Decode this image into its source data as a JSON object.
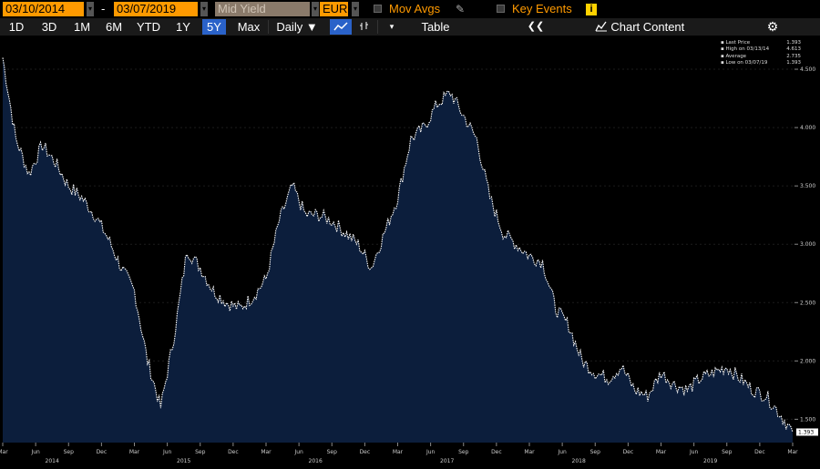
{
  "toolbar": {
    "start_date": "03/10/2014",
    "date_sep": "-",
    "end_date": "03/07/2019",
    "field": "Mid Yield",
    "currency": "EUR",
    "mov_avgs": "Mov Avgs",
    "key_events": "Key Events",
    "info": "i",
    "dropdown": "▾"
  },
  "ranges": [
    "1D",
    "3D",
    "1M",
    "6M",
    "YTD",
    "1Y",
    "5Y",
    "Max"
  ],
  "selected_range": "5Y",
  "frequency": "Daily ▼",
  "chart_type_icon": "line-chart-icon",
  "bar_icon": "bar-chart-icon",
  "table_label": "Table",
  "collapse_label": "❮❮",
  "chart_content_label": "Chart Content",
  "colors": {
    "accent": "#ff9a00",
    "selected": "#2a62c9",
    "area": "#0c1e3c",
    "line": "#ffffff"
  },
  "legend": [
    {
      "label": "Last Price",
      "value": "1.393"
    },
    {
      "label": "High on 03/13/14",
      "value": "4.613"
    },
    {
      "label": "Average",
      "value": "2.735"
    },
    {
      "label": "Low on 03/07/19",
      "value": "1.393"
    }
  ],
  "last_value_tag": "1.393",
  "chart_data": {
    "type": "area",
    "ylim": [
      1.3,
      4.75
    ],
    "yticks": [
      "4.500",
      "4.000",
      "3.500",
      "3.000",
      "2.500",
      "2.000",
      "1.500"
    ],
    "xticks_month": [
      "Mar",
      "Jun",
      "Sep",
      "Dec",
      "Mar",
      "Jun",
      "Sep",
      "Dec",
      "Mar",
      "Jun",
      "Sep",
      "Dec",
      "Mar",
      "Jun",
      "Sep",
      "Dec",
      "Mar",
      "Jun",
      "Sep",
      "Dec",
      "Mar",
      "Jun",
      "Sep",
      "Dec",
      "Mar"
    ],
    "xticks_year": [
      "2014",
      "2015",
      "2016",
      "2017",
      "2018",
      "2019"
    ],
    "x": [
      "2014-03",
      "2014-04",
      "2014-05",
      "2014-06",
      "2014-07",
      "2014-08",
      "2014-09",
      "2014-10",
      "2014-11",
      "2014-12",
      "2015-01",
      "2015-02",
      "2015-03",
      "2015-04",
      "2015-05",
      "2015-06",
      "2015-07",
      "2015-08",
      "2015-09",
      "2015-10",
      "2015-11",
      "2015-12",
      "2016-01",
      "2016-02",
      "2016-03",
      "2016-04",
      "2016-05",
      "2016-06",
      "2016-07",
      "2016-08",
      "2016-09",
      "2016-10",
      "2016-11",
      "2016-12",
      "2017-01",
      "2017-02",
      "2017-03",
      "2017-04",
      "2017-05",
      "2017-06",
      "2017-07",
      "2017-08",
      "2017-09",
      "2017-10",
      "2017-11",
      "2017-12",
      "2018-01",
      "2018-02",
      "2018-03",
      "2018-04",
      "2018-05",
      "2018-06",
      "2018-07",
      "2018-08",
      "2018-09",
      "2018-10",
      "2018-11",
      "2018-12",
      "2019-01",
      "2019-02",
      "2019-03"
    ],
    "values": [
      4.6,
      3.9,
      3.6,
      3.85,
      3.7,
      3.5,
      3.4,
      3.25,
      3.05,
      2.8,
      2.6,
      2.0,
      1.6,
      2.2,
      2.95,
      2.8,
      2.6,
      2.5,
      2.45,
      2.55,
      2.7,
      3.2,
      3.5,
      3.25,
      3.25,
      3.2,
      3.1,
      3.0,
      2.8,
      3.1,
      3.4,
      3.9,
      4.0,
      4.2,
      4.3,
      4.1,
      3.9,
      3.4,
      3.1,
      3.0,
      2.9,
      2.85,
      2.45,
      2.3,
      2.0,
      1.9,
      1.85,
      1.95,
      1.75,
      1.7,
      1.9,
      1.8,
      1.75,
      1.85,
      1.9,
      1.95,
      1.85,
      1.75,
      1.7,
      1.55,
      1.39
    ]
  }
}
